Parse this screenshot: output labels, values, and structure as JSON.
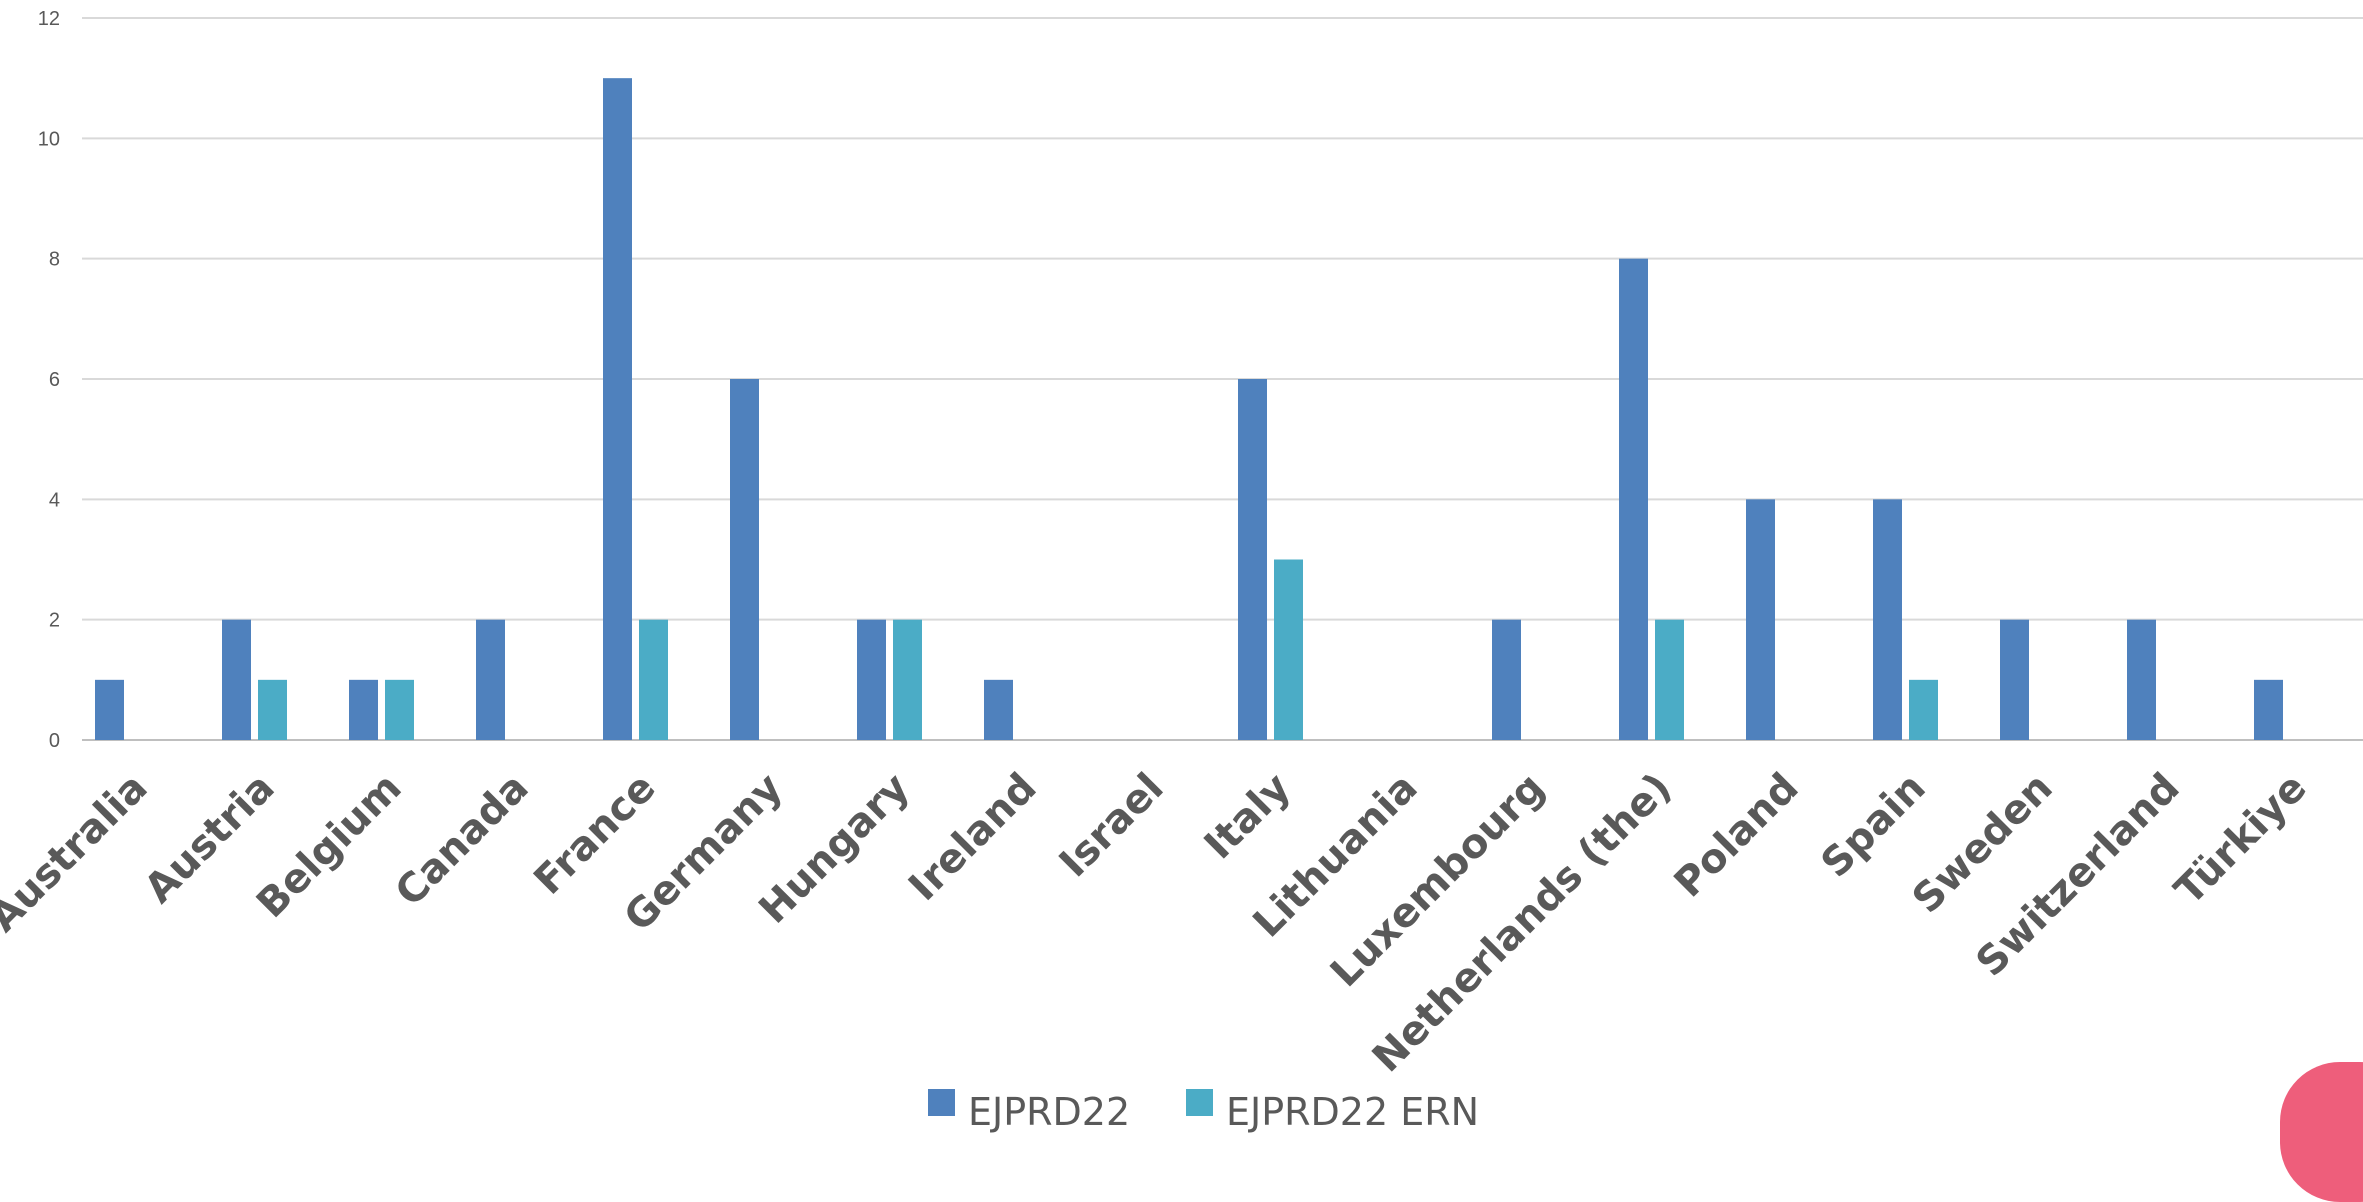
{
  "chart_data": {
    "type": "bar",
    "title": "",
    "xlabel": "",
    "ylabel": "",
    "ylim": [
      0,
      12
    ],
    "yticks": [
      0,
      2,
      4,
      6,
      8,
      10,
      12
    ],
    "grid": true,
    "legend_position": "bottom",
    "categories": [
      "Australia",
      "Austria",
      "Belgium",
      "Canada",
      "France",
      "Germany",
      "Hungary",
      "Ireland",
      "Israel",
      "Italy",
      "Lithuania",
      "Luxembourg",
      "Netherlands (the)",
      "Poland",
      "Spain",
      "Sweden",
      "Switzerland",
      "Türkiye"
    ],
    "series": [
      {
        "name": "EJPRD22",
        "color": "#4f81bd",
        "values": [
          1,
          2,
          1,
          2,
          11,
          6,
          2,
          1,
          0,
          6,
          0,
          2,
          8,
          4,
          4,
          2,
          2,
          1
        ]
      },
      {
        "name": "EJPRD22 ERN",
        "color": "#4bacc6",
        "values": [
          0,
          1,
          1,
          0,
          2,
          0,
          2,
          0,
          0,
          3,
          0,
          0,
          2,
          0,
          1,
          0,
          0,
          0
        ]
      }
    ]
  },
  "colors": {
    "corner_accent": "#ee5e7b"
  }
}
